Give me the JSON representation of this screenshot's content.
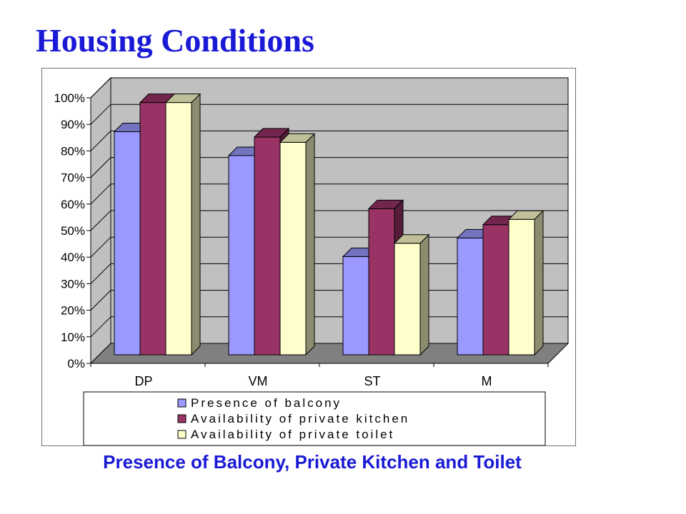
{
  "slide": {
    "title": "Housing Conditions",
    "caption": "Presence of Balcony, Private Kitchen and Toilet"
  },
  "chart_data": {
    "type": "bar",
    "style": "3d-clustered-column",
    "categories": [
      "DP",
      "VM",
      "ST",
      "M"
    ],
    "series": [
      {
        "name": "Presence of balcony",
        "values": [
          84,
          75,
          37,
          44
        ],
        "color": "#9999ff"
      },
      {
        "name": "Availability of private kitchen",
        "values": [
          95,
          82,
          55,
          49
        ],
        "color": "#993366"
      },
      {
        "name": "Availability of private toilet",
        "values": [
          95,
          80,
          42,
          51
        ],
        "color": "#ffffcc"
      }
    ],
    "y_ticks": [
      "0%",
      "10%",
      "20%",
      "30%",
      "40%",
      "50%",
      "60%",
      "70%",
      "80%",
      "90%",
      "100%"
    ],
    "ylim": [
      0,
      100
    ],
    "y_unit": "%",
    "grid": true,
    "legend_position": "bottom",
    "wall_color": "#c0c0c0",
    "floor_color": "#808080"
  }
}
